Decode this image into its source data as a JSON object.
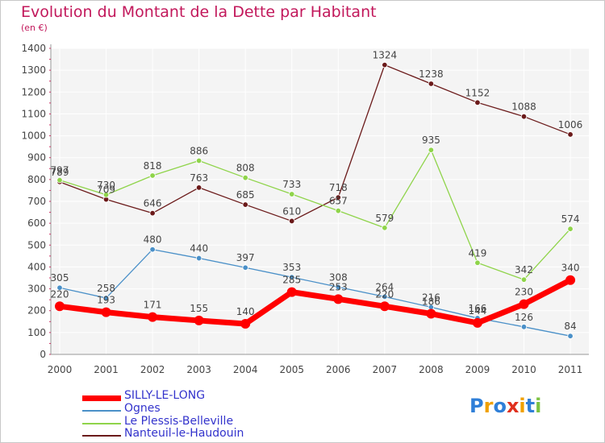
{
  "chart_data": {
    "type": "line",
    "title": "Evolution du Montant de la Dette par Habitant",
    "subtitle": "(en €)",
    "categories": [
      "2000",
      "2001",
      "2002",
      "2003",
      "2004",
      "2005",
      "2006",
      "2007",
      "2008",
      "2009",
      "2010",
      "2011"
    ],
    "ylim": [
      0,
      1400
    ],
    "yticks": [
      0,
      100,
      200,
      300,
      400,
      500,
      600,
      700,
      800,
      900,
      1000,
      1100,
      1200,
      1300,
      1400
    ],
    "grid": true,
    "legend_position": "bottom-left",
    "series": [
      {
        "name": "SILLY-LE-LONG",
        "color": "#ff0000",
        "values": [
          220,
          193,
          171,
          155,
          140,
          285,
          253,
          220,
          186,
          144,
          230,
          340
        ]
      },
      {
        "name": "Ognes",
        "color": "#4a90c8",
        "values": [
          305,
          258,
          480,
          440,
          397,
          353,
          308,
          264,
          216,
          166,
          126,
          84
        ]
      },
      {
        "name": "Le Plessis-Belleville",
        "color": "#8fd44a",
        "values": [
          797,
          730,
          818,
          886,
          808,
          733,
          657,
          579,
          935,
          419,
          342,
          574
        ]
      },
      {
        "name": "Nanteuil-le-Haudouin",
        "color": "#6b1a1a",
        "values": [
          789,
          709,
          646,
          763,
          685,
          610,
          718,
          1324,
          1238,
          1152,
          1088,
          1006
        ]
      }
    ]
  },
  "logo": {
    "letters": [
      {
        "ch": "P",
        "color": "#2f7fd8"
      },
      {
        "ch": "r",
        "color": "#f0a000"
      },
      {
        "ch": "o",
        "color": "#2f7fd8"
      },
      {
        "ch": "x",
        "color": "#e0301e"
      },
      {
        "ch": "i",
        "color": "#f0a000"
      },
      {
        "ch": "t",
        "color": "#2f7fd8"
      },
      {
        "ch": "i",
        "color": "#7cc242"
      }
    ]
  }
}
